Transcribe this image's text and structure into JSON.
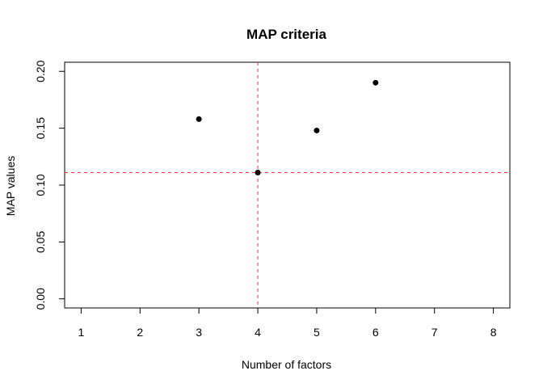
{
  "chart_data": {
    "type": "scatter",
    "title": "MAP criteria",
    "xlabel": "Number of factors",
    "ylabel": "MAP values",
    "xlim": [
      0.72,
      8.28
    ],
    "ylim": [
      -0.008,
      0.208
    ],
    "x_ticks": [
      1,
      2,
      3,
      4,
      5,
      6,
      7,
      8
    ],
    "x_tick_labels": [
      "1",
      "2",
      "3",
      "4",
      "5",
      "6",
      "7",
      "8"
    ],
    "y_ticks": [
      0.0,
      0.05,
      0.1,
      0.15,
      0.2
    ],
    "y_tick_labels": [
      "0.00",
      "0.05",
      "0.10",
      "0.15",
      "0.20"
    ],
    "points": [
      {
        "x": 3,
        "y": 0.158
      },
      {
        "x": 4,
        "y": 0.111
      },
      {
        "x": 5,
        "y": 0.148
      },
      {
        "x": 6,
        "y": 0.19
      }
    ],
    "reference_lines": {
      "vertical_x": 4,
      "horizontal_y": 0.111,
      "color": "#e8333a",
      "style": "dashed"
    },
    "point_color": "#000000",
    "grid": false,
    "legend": "none"
  }
}
